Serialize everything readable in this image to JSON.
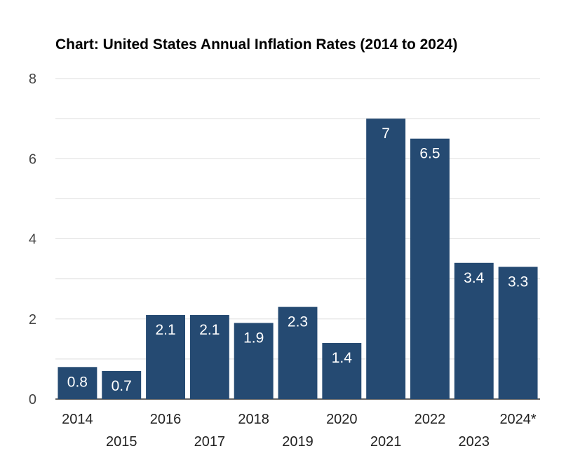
{
  "chart_data": {
    "type": "bar",
    "title": "Chart: United States Annual Inflation Rates (2014 to 2024)",
    "xlabel": "",
    "ylabel": "",
    "categories": [
      "2014",
      "2015",
      "2016",
      "2017",
      "2018",
      "2019",
      "2020",
      "2021",
      "2022",
      "2023",
      "2024*"
    ],
    "values": [
      0.8,
      0.7,
      2.1,
      2.1,
      1.9,
      2.3,
      1.4,
      7,
      6.5,
      3.4,
      3.3
    ],
    "ylim": [
      0,
      8
    ],
    "yticks": [
      "0",
      "2",
      "4",
      "6",
      "8"
    ],
    "grid": true,
    "legend": "none",
    "bar_color": "#254a72",
    "data_labels": [
      "0.8",
      "0.7",
      "2.1",
      "2.1",
      "1.9",
      "2.3",
      "1.4",
      "7",
      "6.5",
      "3.4",
      "3.3"
    ]
  }
}
